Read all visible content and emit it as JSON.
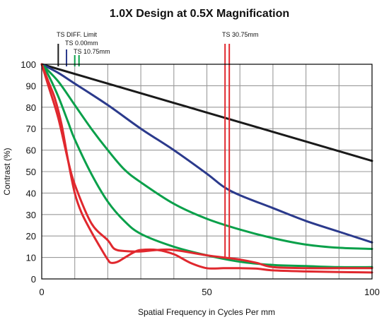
{
  "chart_data": {
    "type": "line",
    "title": "1.0X Design at 0.5X Magnification",
    "xlabel": "Spatial Frequency in Cycles Per mm",
    "ylabel": "Contrast (%)",
    "xlim": [
      0,
      100
    ],
    "ylim": [
      0,
      100
    ],
    "xticks": [
      "0",
      "50",
      "100"
    ],
    "yticks": [
      "0",
      "10",
      "20",
      "30",
      "40",
      "50",
      "60",
      "70",
      "80",
      "90",
      "100"
    ],
    "grid": true,
    "legend_labels": [
      "TS DIFF. Limit",
      "TS 0.00mm",
      "TS 10.75mm",
      "TS 30.75mm"
    ],
    "colors": {
      "diff_limit": "#1a1a1a",
      "field_0": "#2b3a8c",
      "field_10_75": "#0aa04a",
      "field_30_75": "#e0282e"
    },
    "series": [
      {
        "name": "TS DIFF. Limit",
        "color": "#1a1a1a",
        "x": [
          0,
          100
        ],
        "y": [
          100,
          55
        ]
      },
      {
        "name": "TS 0.00mm",
        "color": "#2b3a8c",
        "x": [
          0,
          5,
          10,
          20,
          30,
          40,
          50,
          55,
          60,
          70,
          80,
          90,
          100
        ],
        "y": [
          100,
          96,
          91,
          81,
          70,
          60,
          49,
          43,
          39,
          33,
          27,
          22,
          17
        ]
      },
      {
        "name": "TS 10.75mm",
        "color": "#0aa04a",
        "x": [
          0,
          5,
          10,
          15,
          20,
          25,
          30,
          40,
          50,
          60,
          70,
          80,
          90,
          100
        ],
        "y": [
          100,
          92,
          81,
          70,
          60,
          51,
          45,
          35,
          28,
          23,
          19,
          16,
          14.5,
          14
        ]
      },
      {
        "name": "TS 10.75mm",
        "color": "#0aa04a",
        "x": [
          0,
          2,
          5,
          8,
          10,
          15,
          20,
          25,
          30,
          40,
          50,
          60,
          70,
          80,
          90,
          100
        ],
        "y": [
          100,
          95,
          85,
          73,
          65,
          49,
          36,
          27,
          21,
          15,
          11,
          8,
          6.5,
          6,
          5.5,
          5.5
        ]
      },
      {
        "name": "TS 30.75mm",
        "color": "#e0282e",
        "x": [
          0,
          2,
          5,
          8,
          10,
          15,
          20,
          22,
          25,
          30,
          35,
          40,
          50,
          55,
          60,
          65,
          70,
          80,
          90,
          100
        ],
        "y": [
          100,
          90,
          75,
          55,
          44,
          26,
          18,
          14,
          13,
          12.8,
          13.5,
          13.5,
          11,
          10,
          9,
          7.5,
          5.5,
          5,
          5,
          5
        ]
      },
      {
        "name": "TS 30.75mm",
        "color": "#e0282e",
        "x": [
          0,
          2,
          4,
          6,
          8,
          10,
          12,
          15,
          18,
          20,
          21,
          23,
          25,
          28,
          30,
          35,
          40,
          45,
          50,
          55,
          60,
          65,
          70,
          80,
          90,
          100
        ],
        "y": [
          100,
          92,
          84,
          72,
          55,
          40,
          31,
          22,
          14,
          9,
          7.5,
          8,
          9.8,
          12.5,
          13.5,
          13.5,
          11.5,
          7.5,
          5,
          5,
          5,
          4.8,
          4,
          3.5,
          3.2,
          3
        ]
      }
    ],
    "legend_markers": [
      {
        "label": "TS DIFF. Limit",
        "x": 5,
        "colors": [
          "#1a1a1a"
        ]
      },
      {
        "label": "TS 0.00mm",
        "x": 7.5,
        "colors": [
          "#2b3a8c"
        ]
      },
      {
        "label": "TS 10.75mm",
        "x": 10,
        "colors": [
          "#0aa04a",
          "#0aa04a"
        ]
      },
      {
        "label": "TS 30.75mm",
        "x": 55.5,
        "colors": [
          "#e0282e",
          "#e0282e"
        ]
      }
    ]
  }
}
